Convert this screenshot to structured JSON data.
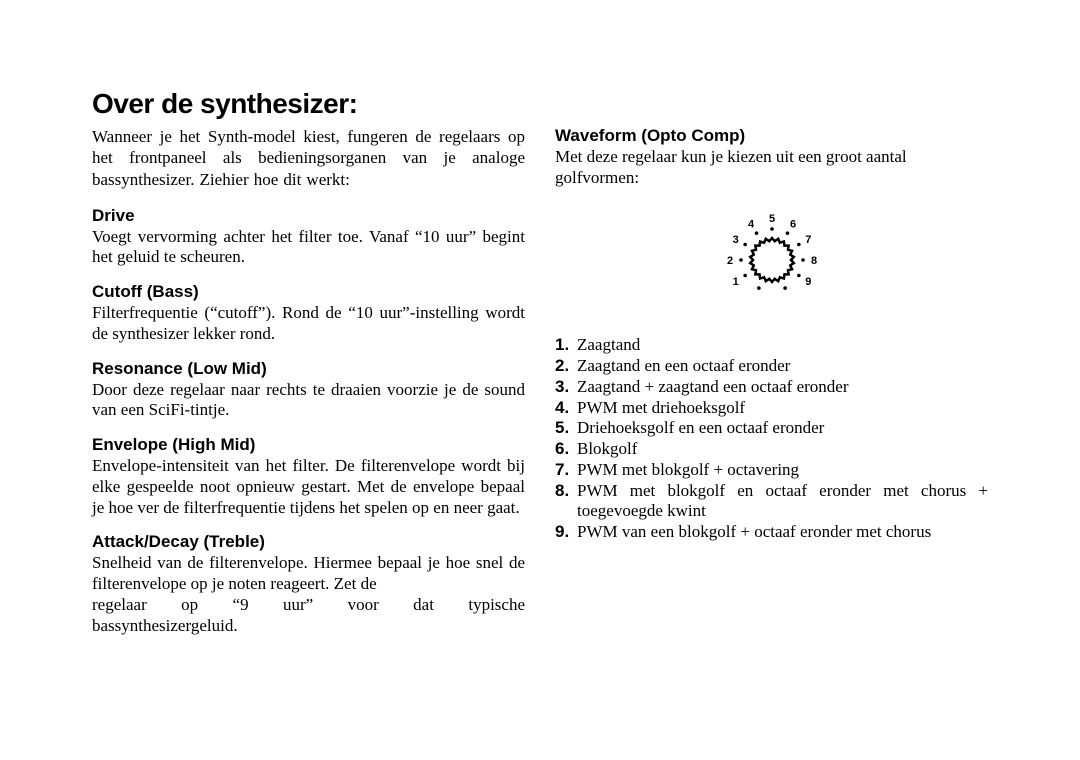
{
  "title": "Over de synthesizer:",
  "intro": "Wanneer je het Synth-model kiest, fungeren de regelaars op het frontpaneel als bedieningsorganen van je analoge bassynthesizer. Ziehier hoe dit werkt:",
  "sections": {
    "drive": {
      "heading": "Drive",
      "body": "Voegt vervorming achter het filter toe. Vanaf “10 uur” begint het geluid te scheuren."
    },
    "cutoff": {
      "heading": "Cutoff (Bass)",
      "body": "Filterfrequentie (“cutoff”). Rond de “10 uur”-instelling wordt de synthesizer lekker rond."
    },
    "resonance": {
      "heading": "Resonance (Low Mid)",
      "body": "Door deze regelaar naar rechts te draaien voorzie je de sound van een SciFi-tintje."
    },
    "envelope": {
      "heading": "Envelope (High Mid)",
      "body": "Envelope-intensiteit van het filter. De filterenvelope wordt bij elke gespeelde noot opnieuw gestart. Met de envelope bepaal je hoe ver de filterfrequentie tijdens het spelen op en neer gaat."
    },
    "attack": {
      "heading": "Attack/Decay (Treble)",
      "body_line1": "Snelheid van de filterenvelope. Hiermee bepaal je hoe snel de filterenvelope op je noten reageert. Zet de",
      "body_line2": "regelaar op “9 uur” voor dat typische",
      "body_line3": "bassynthesizergeluid."
    },
    "waveform": {
      "heading": "Waveform (Opto Comp)",
      "intro": "Met deze regelaar kun je kiezen uit een groot aantal golfvormen:"
    }
  },
  "knob": {
    "labels": [
      "1",
      "2",
      "3",
      "4",
      "5",
      "6",
      "7",
      "8",
      "9"
    ],
    "stroke_color": "#000000",
    "font_family": "Arial, Helvetica, sans-serif",
    "font_size": 11,
    "font_weight": "700"
  },
  "waveforms": [
    {
      "num": "1.",
      "text": "Zaagtand"
    },
    {
      "num": "2.",
      "text": "Zaagtand en een octaaf eronder"
    },
    {
      "num": "3.",
      "text": "Zaagtand + zaagtand een octaaf eronder"
    },
    {
      "num": "4.",
      "text": "PWM met driehoeksgolf"
    },
    {
      "num": "5.",
      "text": "Driehoeksgolf en een octaaf eronder"
    },
    {
      "num": "6.",
      "text": "Blokgolf"
    },
    {
      "num": "7.",
      "text": "PWM met blokgolf + octavering"
    },
    {
      "num": "8.",
      "text": "PWM met blokgolf en octaaf eronder met chorus + toegevoegde kwint"
    },
    {
      "num": "9.",
      "text": "PWM van een blokgolf + octaaf eronder met chorus"
    }
  ]
}
